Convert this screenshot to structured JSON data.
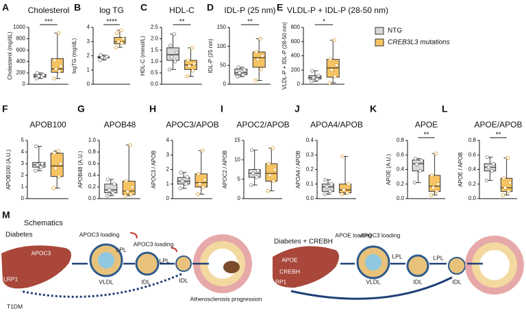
{
  "legend": [
    {
      "name": "NTG",
      "color": "#d9d9d9"
    },
    {
      "name": "CREB3L3 mutations",
      "color": "#f6c462"
    }
  ],
  "chart_data": [
    {
      "type": "box",
      "panel": "A",
      "title": "Cholesterol",
      "ylabel": "Cholesterol (mg/dL)",
      "ylim": [
        0,
        1000
      ],
      "yticks": [
        0,
        200,
        400,
        600,
        800,
        1000
      ],
      "significance": "***",
      "series": [
        {
          "min": 100,
          "q1": 125,
          "median": 145,
          "q3": 175,
          "max": 200,
          "points": [
            100,
            130,
            145,
            160,
            200
          ]
        },
        {
          "min": 100,
          "q1": 210,
          "median": 270,
          "q3": 450,
          "max": 900,
          "points": [
            100,
            230,
            270,
            320,
            420,
            900
          ]
        }
      ]
    },
    {
      "type": "box",
      "panel": "B",
      "title": "log TG",
      "ylabel": "logTG (mg/dL)",
      "ylim": [
        0,
        4
      ],
      "yticks": [
        0,
        1,
        2,
        3,
        4
      ],
      "significance": "****",
      "series": [
        {
          "min": 1.7,
          "q1": 1.85,
          "median": 1.9,
          "q3": 1.95,
          "max": 2.05,
          "points": [
            1.7,
            1.85,
            1.9,
            1.95,
            2.05
          ]
        },
        {
          "min": 2.6,
          "q1": 2.85,
          "median": 3.0,
          "q3": 3.3,
          "max": 3.8,
          "points": [
            2.6,
            2.9,
            3.0,
            3.2,
            3.6,
            3.8
          ]
        }
      ]
    },
    {
      "type": "box",
      "panel": "C",
      "title": "HDL-C",
      "ylabel": "HDL-C (mmol/L)",
      "ylim": [
        0,
        2.5
      ],
      "yticks": [
        {
          "value": 0,
          "label": "0.0"
        },
        {
          "value": 0.5,
          "label": "0.5"
        },
        {
          "value": 1,
          "label": "1.0"
        },
        {
          "value": 1.5,
          "label": "1.5"
        },
        {
          "value": 2,
          "label": "2.0"
        },
        {
          "value": 2.5,
          "label": "2.5"
        }
      ],
      "significance": "**",
      "series": [
        {
          "min": 0.65,
          "q1": 1.05,
          "median": 1.3,
          "q3": 1.6,
          "max": 2.2,
          "points": [
            0.65,
            1.0,
            1.2,
            1.4,
            1.7,
            2.2
          ]
        },
        {
          "min": 0.35,
          "q1": 0.65,
          "median": 0.85,
          "q3": 1.05,
          "max": 1.6,
          "points": [
            0.35,
            0.6,
            0.8,
            0.9,
            1.05,
            1.6
          ]
        }
      ]
    },
    {
      "type": "box",
      "panel": "D",
      "title": "IDL-P (25 nm)",
      "ylabel": "IDL-P (25 nm)",
      "ylim": [
        0,
        150
      ],
      "yticks": [
        0,
        50,
        100,
        150
      ],
      "significance": "**",
      "series": [
        {
          "min": 20,
          "q1": 25,
          "median": 30,
          "q3": 40,
          "max": 45,
          "points": [
            20,
            25,
            30,
            38,
            45
          ]
        },
        {
          "min": 10,
          "q1": 45,
          "median": 70,
          "q3": 85,
          "max": 120,
          "points": [
            10,
            40,
            65,
            75,
            85,
            120
          ]
        }
      ]
    },
    {
      "type": "box",
      "panel": "E",
      "title": "VLDL-P + IDL-P (28-50 nm)",
      "ylabel": "VLDL-P + IDL-P (28-50 nm)",
      "ylim": [
        0,
        800
      ],
      "yticks": [
        0,
        200,
        400,
        600,
        800
      ],
      "significance": "*",
      "series": [
        {
          "min": 40,
          "q1": 75,
          "median": 95,
          "q3": 120,
          "max": 190,
          "points": [
            40,
            70,
            95,
            120,
            190
          ]
        },
        {
          "min": 20,
          "q1": 100,
          "median": 230,
          "q3": 350,
          "max": 620,
          "points": [
            20,
            110,
            200,
            270,
            350,
            620
          ]
        }
      ]
    },
    {
      "type": "box",
      "panel": "F",
      "title": "APOB100",
      "ylabel": "APOB100 (A.U.)",
      "ylim": [
        0,
        5
      ],
      "yticks": [
        0,
        1,
        2,
        3,
        4,
        5
      ],
      "significance": null,
      "series": [
        {
          "min": 2.4,
          "q1": 2.7,
          "median": 2.9,
          "q3": 3.1,
          "max": 4.5,
          "points": [
            2.4,
            2.7,
            2.9,
            3.0,
            4.5
          ]
        },
        {
          "min": 0.9,
          "q1": 1.9,
          "median": 2.8,
          "q3": 3.9,
          "max": 4.1,
          "points": [
            0.9,
            1.9,
            2.6,
            3.0,
            3.9,
            4.1
          ]
        }
      ]
    },
    {
      "type": "box",
      "panel": "G",
      "title": "APOB48",
      "ylabel": "APOB48 (A.U.)",
      "ylim": [
        0,
        1
      ],
      "yticks": [
        {
          "value": 0,
          "label": "0.0"
        },
        {
          "value": 0.2,
          "label": "0.2"
        },
        {
          "value": 0.4,
          "label": "0.4"
        },
        {
          "value": 0.6,
          "label": "0.6"
        },
        {
          "value": 0.8,
          "label": "0.8"
        },
        {
          "value": 1,
          "label": "1.0"
        }
      ],
      "significance": null,
      "series": [
        {
          "min": 0.05,
          "q1": 0.1,
          "median": 0.15,
          "q3": 0.25,
          "max": 0.33,
          "points": [
            0.05,
            0.1,
            0.15,
            0.25,
            0.33
          ]
        },
        {
          "min": 0.05,
          "q1": 0.07,
          "median": 0.13,
          "q3": 0.3,
          "max": 0.92,
          "points": [
            0.05,
            0.07,
            0.12,
            0.2,
            0.3,
            0.92
          ]
        }
      ]
    },
    {
      "type": "box",
      "panel": "H",
      "title": "APOC3/APOB",
      "ylabel": "APOC3 / APOB",
      "ylim": [
        0,
        4
      ],
      "yticks": [
        0,
        1,
        2,
        3,
        4
      ],
      "significance": null,
      "series": [
        {
          "min": 0.7,
          "q1": 1.0,
          "median": 1.2,
          "q3": 1.45,
          "max": 1.8,
          "points": [
            0.7,
            1.0,
            1.2,
            1.5,
            1.8
          ]
        },
        {
          "min": 0.3,
          "q1": 0.8,
          "median": 1.1,
          "q3": 1.7,
          "max": 3.3,
          "points": [
            0.3,
            0.8,
            1.0,
            1.3,
            1.7,
            3.3
          ]
        }
      ]
    },
    {
      "type": "box",
      "panel": "I",
      "title": "APOC2/APOB",
      "ylabel": "APOC2 / APOB",
      "ylim": [
        0,
        15
      ],
      "yticks": [
        0,
        5,
        10,
        15
      ],
      "significance": null,
      "series": [
        {
          "min": 3.5,
          "q1": 5.5,
          "median": 6.5,
          "q3": 7.5,
          "max": 12.5,
          "points": [
            3.5,
            5.5,
            6.5,
            7.2,
            12.5
          ]
        },
        {
          "min": 2,
          "q1": 4.5,
          "median": 6.5,
          "q3": 9,
          "max": 13,
          "points": [
            2,
            4.5,
            6,
            7.5,
            9,
            13
          ]
        }
      ]
    },
    {
      "type": "box",
      "panel": "J",
      "title": "APOA4/APOB",
      "ylabel": "APOA4 / APOB",
      "ylim": [
        0,
        0.4
      ],
      "yticks": [
        {
          "value": 0,
          "label": "0.0"
        },
        {
          "value": 0.1,
          "label": "0.1"
        },
        {
          "value": 0.2,
          "label": "0.2"
        },
        {
          "value": 0.3,
          "label": "0.3"
        },
        {
          "value": 0.4,
          "label": "0.4"
        }
      ],
      "significance": null,
      "series": [
        {
          "min": 0.03,
          "q1": 0.05,
          "median": 0.08,
          "q3": 0.1,
          "max": 0.13,
          "points": [
            0.03,
            0.05,
            0.08,
            0.1,
            0.13
          ]
        },
        {
          "min": 0.03,
          "q1": 0.04,
          "median": 0.06,
          "q3": 0.1,
          "max": 0.29,
          "points": [
            0.03,
            0.04,
            0.06,
            0.1,
            0.29
          ]
        }
      ]
    },
    {
      "type": "box",
      "panel": "K",
      "title": "APOE",
      "ylabel": "APOE (A.U.)",
      "ylim": [
        0,
        0.8
      ],
      "yticks": [
        {
          "value": 0,
          "label": "0.0"
        },
        {
          "value": 0.2,
          "label": "0.2"
        },
        {
          "value": 0.4,
          "label": "0.4"
        },
        {
          "value": 0.6,
          "label": "0.6"
        },
        {
          "value": 0.8,
          "label": "0.8"
        }
      ],
      "significance": "**",
      "series": [
        {
          "min": 0.22,
          "q1": 0.38,
          "median": 0.48,
          "q3": 0.53,
          "max": 0.55,
          "points": [
            0.22,
            0.38,
            0.47,
            0.52,
            0.55
          ]
        },
        {
          "min": 0.05,
          "q1": 0.1,
          "median": 0.17,
          "q3": 0.32,
          "max": 0.62,
          "points": [
            0.05,
            0.1,
            0.15,
            0.2,
            0.32,
            0.62
          ]
        }
      ]
    },
    {
      "type": "box",
      "panel": "L",
      "title": "APOE/APOB",
      "ylabel": "APOE / APOB",
      "ylim": [
        0,
        0.8
      ],
      "yticks": [
        {
          "value": 0,
          "label": "0.0"
        },
        {
          "value": 0.2,
          "label": "0.2"
        },
        {
          "value": 0.4,
          "label": "0.4"
        },
        {
          "value": 0.6,
          "label": "0.6"
        },
        {
          "value": 0.8,
          "label": "0.8"
        }
      ],
      "significance": "**",
      "series": [
        {
          "min": 0.25,
          "q1": 0.38,
          "median": 0.43,
          "q3": 0.48,
          "max": 0.57,
          "points": [
            0.25,
            0.38,
            0.43,
            0.48,
            0.57
          ]
        },
        {
          "min": 0.05,
          "q1": 0.1,
          "median": 0.15,
          "q3": 0.28,
          "max": 0.56,
          "points": [
            0.05,
            0.1,
            0.15,
            0.22,
            0.28,
            0.56
          ]
        }
      ]
    }
  ],
  "schematic": {
    "panel": "M",
    "title": "Schematics",
    "left": {
      "title": "Diabetes",
      "labels": [
        "APOC3",
        "APOC3 loading",
        "LPL",
        "APOC3 loading",
        "LPL",
        "VLDL",
        "IDL",
        "IDL",
        "LRP1",
        "T1DM",
        "Atherosclerosis progression"
      ]
    },
    "right": {
      "title": "Diabetes + CREBH",
      "labels": [
        "APOE",
        "CREBH",
        "LRP1",
        "APOE loading",
        "APOC3 loading",
        "LPL",
        "LPL",
        "VLDL",
        "IDL",
        "IDL"
      ]
    }
  }
}
